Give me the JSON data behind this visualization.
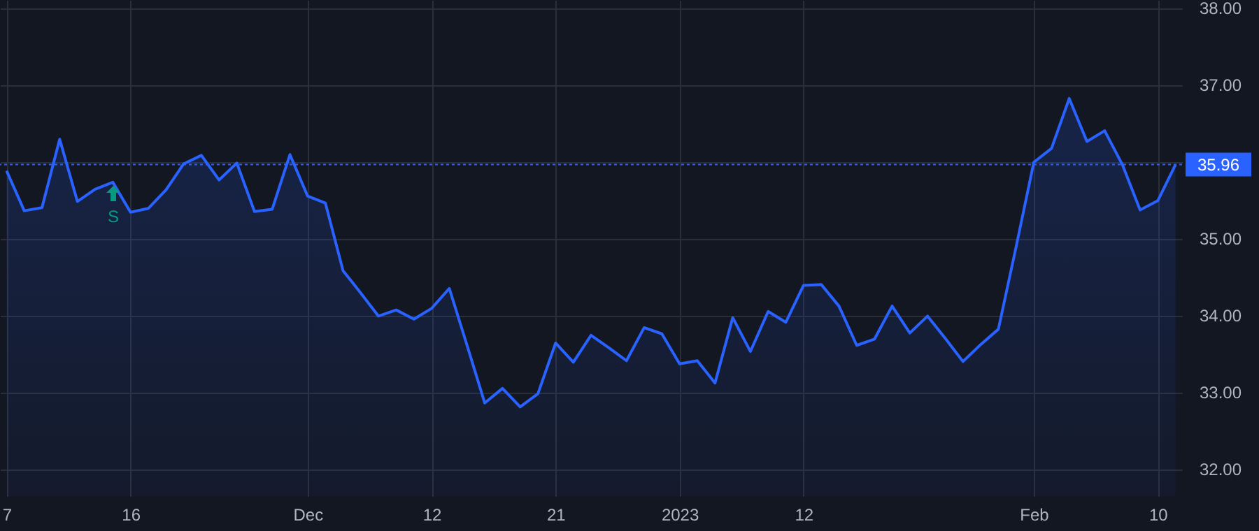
{
  "chart_data": {
    "type": "area",
    "categories": [
      "7",
      null,
      null,
      null,
      null,
      null,
      null,
      "16",
      null,
      null,
      null,
      null,
      null,
      null,
      null,
      null,
      null,
      "Dec",
      null,
      null,
      null,
      null,
      null,
      null,
      "12",
      null,
      null,
      null,
      null,
      null,
      null,
      "21",
      null,
      null,
      null,
      null,
      null,
      null,
      "2023",
      null,
      null,
      null,
      null,
      null,
      null,
      "12",
      null,
      null,
      null,
      null,
      null,
      null,
      null,
      null,
      null,
      null,
      null,
      null,
      "Feb",
      null,
      null,
      null,
      null,
      null,
      null,
      "10",
      null
    ],
    "series": [
      {
        "color": "#2962ff",
        "values": [
          35.88,
          35.36,
          35.4,
          36.29,
          35.48,
          35.64,
          35.73,
          35.34,
          35.39,
          35.63,
          35.97,
          36.08,
          35.76,
          35.98,
          35.35,
          35.38,
          36.09,
          35.55,
          35.46,
          34.58,
          34.29,
          33.99,
          34.07,
          33.95,
          34.09,
          34.35,
          33.61,
          32.86,
          33.05,
          32.81,
          32.98,
          33.64,
          33.39,
          33.74,
          33.58,
          33.41,
          33.84,
          33.76,
          33.37,
          33.41,
          33.12,
          33.97,
          33.53,
          34.05,
          33.91,
          34.39,
          34.4,
          34.12,
          33.61,
          33.69,
          34.12,
          33.77,
          33.99,
          33.7,
          33.4,
          33.62,
          33.82,
          34.89,
          35.99,
          36.17,
          36.82,
          36.26,
          36.4,
          35.96,
          35.37,
          35.49,
          35.96
        ]
      }
    ],
    "ylim": [
      31.65,
      38.1
    ],
    "yticks": [
      {
        "value": 32,
        "label": "32.00"
      },
      {
        "value": 33,
        "label": "33.00"
      },
      {
        "value": 34,
        "label": "34.00"
      },
      {
        "value": 35,
        "label": "35.00"
      },
      {
        "value": 36,
        "label": null
      },
      {
        "value": 37,
        "label": "37.00"
      },
      {
        "value": 38,
        "label": "38.00"
      }
    ],
    "grid": true,
    "ref_lines": [
      {
        "axis": "y",
        "value": 35.96,
        "label": "35.96",
        "color": "#2962ff",
        "line_style": "dotted"
      }
    ],
    "annotations": [
      "S"
    ]
  }
}
